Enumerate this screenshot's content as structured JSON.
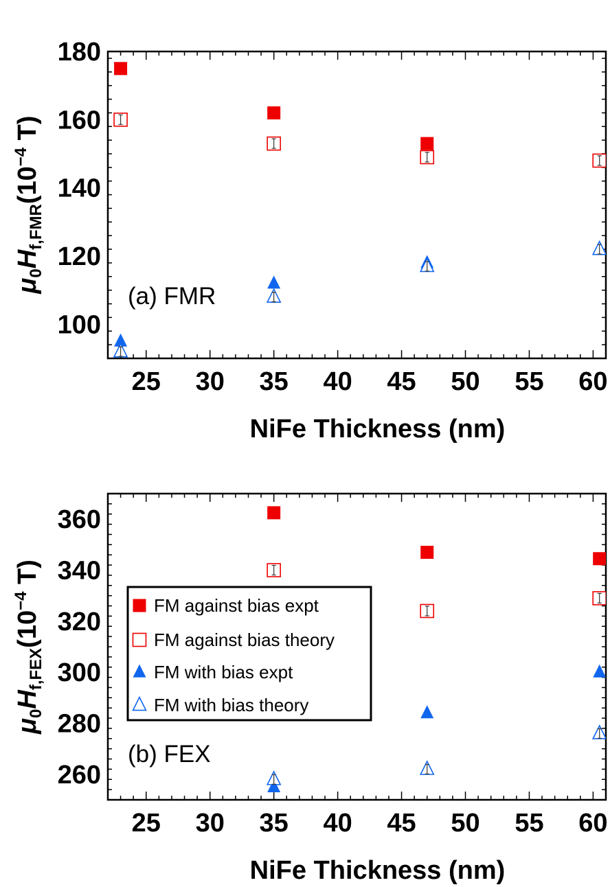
{
  "colors": {
    "red": "#ee0000",
    "blue": "#1166ee",
    "axis": "#000000"
  },
  "legend": {
    "items": [
      {
        "label": "FM against bias expt",
        "marker": "square",
        "filled": true,
        "color": "#ee0000"
      },
      {
        "label": "FM against bias theory",
        "marker": "square",
        "filled": false,
        "color": "#ee0000"
      },
      {
        "label": "FM with bias expt",
        "marker": "triangle",
        "filled": true,
        "color": "#1166ee"
      },
      {
        "label": "FM with bias theory",
        "marker": "triangle",
        "filled": false,
        "color": "#1166ee"
      }
    ]
  },
  "chart_data": [
    {
      "type": "scatter",
      "panel_label": "(a) FMR",
      "xlabel": "NiFe Thickness (nm)",
      "ylabel_parts": {
        "mu": "μ",
        "mu_sub": "0",
        "h": "H",
        "h_sub": "f,FMR",
        "unit_open": "(10",
        "unit_exp": "−4",
        "unit_close": " T)"
      },
      "xlim": [
        22,
        61
      ],
      "ylim": [
        90,
        180
      ],
      "xticks": [
        25,
        30,
        35,
        40,
        45,
        50,
        55,
        60
      ],
      "yticks": [
        100,
        120,
        140,
        160,
        180
      ],
      "series": [
        {
          "name": "FM against bias expt",
          "marker": "square",
          "filled": true,
          "color": "#ee0000",
          "x": [
            23,
            35,
            47,
            60.5
          ],
          "y": [
            175,
            162,
            153,
            148
          ]
        },
        {
          "name": "FM against bias theory",
          "marker": "square",
          "filled": false,
          "color": "#ee0000",
          "error_bars": true,
          "x": [
            23,
            35,
            47,
            60.5
          ],
          "y": [
            160,
            153,
            149,
            148
          ]
        },
        {
          "name": "FM with bias expt",
          "marker": "triangle",
          "filled": true,
          "color": "#1166ee",
          "x": [
            23,
            35,
            47,
            60.5
          ],
          "y": [
            95,
            112,
            118,
            122
          ]
        },
        {
          "name": "FM with bias theory",
          "marker": "triangle",
          "filled": false,
          "color": "#1166ee",
          "error_bars": true,
          "x": [
            23,
            35,
            47,
            60.5
          ],
          "y": [
            92,
            108,
            117,
            122
          ]
        }
      ]
    },
    {
      "type": "scatter",
      "panel_label": "(b) FEX",
      "xlabel": "NiFe Thickness (nm)",
      "ylabel_parts": {
        "mu": "μ",
        "mu_sub": "0",
        "h": "H",
        "h_sub": "f,FEX",
        "unit_open": "(10",
        "unit_exp": "−4",
        "unit_close": " T)"
      },
      "xlim": [
        22,
        61
      ],
      "ylim": [
        250,
        370
      ],
      "xticks": [
        25,
        30,
        35,
        40,
        45,
        50,
        55,
        60
      ],
      "yticks": [
        260,
        280,
        300,
        320,
        340,
        360
      ],
      "series": [
        {
          "name": "FM against bias expt",
          "marker": "square",
          "filled": true,
          "color": "#ee0000",
          "x": [
            35,
            47,
            60.5
          ],
          "y": [
            362.5,
            347,
            344.5
          ]
        },
        {
          "name": "FM against bias theory",
          "marker": "square",
          "filled": false,
          "color": "#ee0000",
          "error_bars": true,
          "x": [
            35,
            47,
            60.5
          ],
          "y": [
            340,
            324,
            329
          ]
        },
        {
          "name": "FM with bias expt",
          "marker": "triangle",
          "filled": true,
          "color": "#1166ee",
          "x": [
            35,
            47,
            60.5
          ],
          "y": [
            255,
            284,
            300
          ]
        },
        {
          "name": "FM with bias theory",
          "marker": "triangle",
          "filled": false,
          "color": "#1166ee",
          "error_bars": true,
          "x": [
            35,
            47,
            60.5
          ],
          "y": [
            258,
            262,
            276
          ]
        }
      ]
    }
  ]
}
